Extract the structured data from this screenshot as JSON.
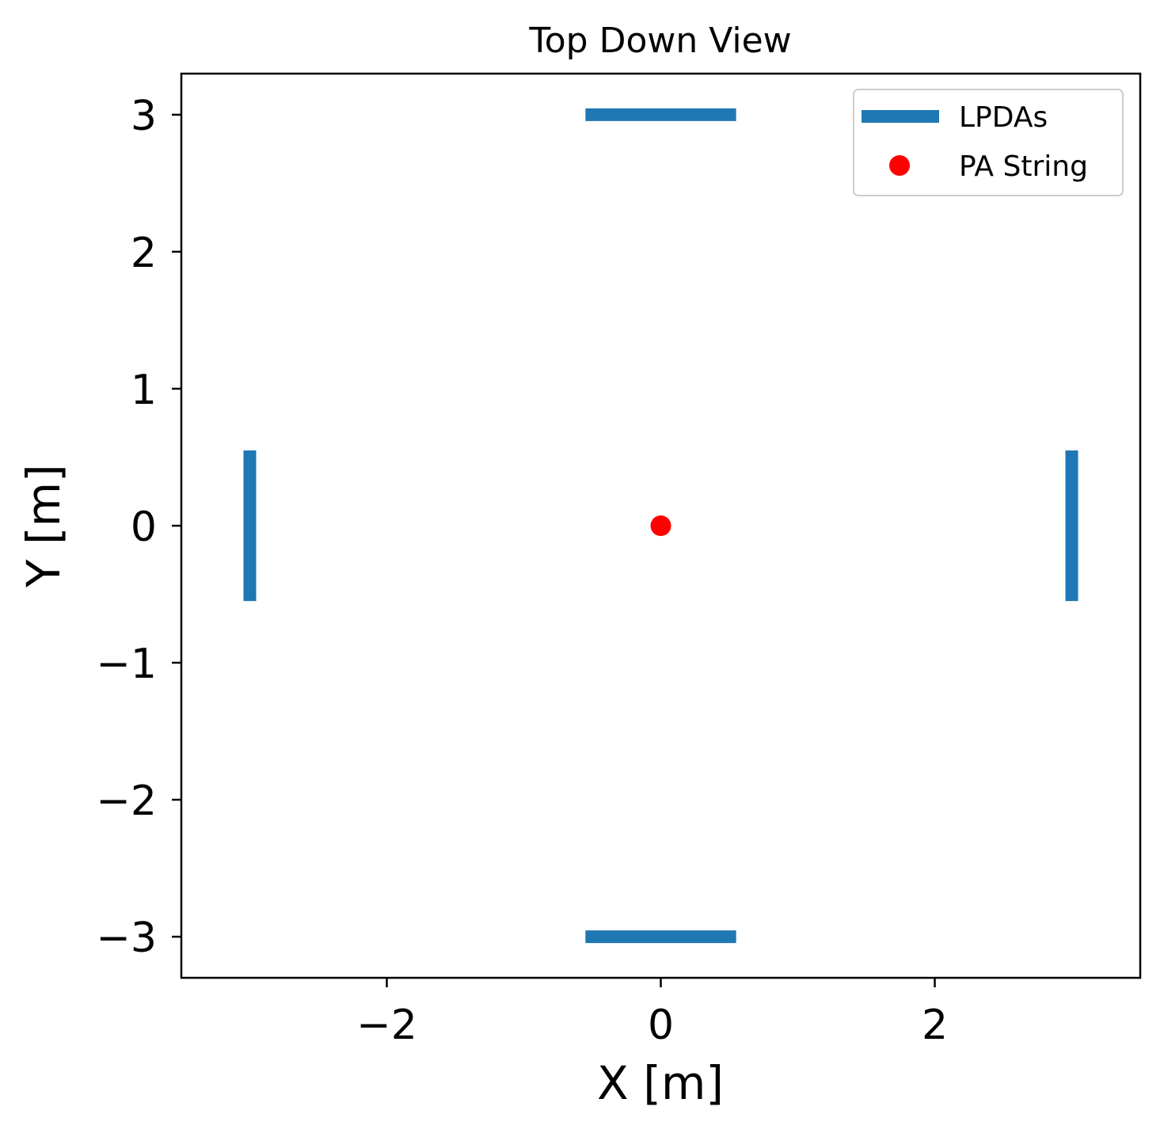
{
  "chart_data": {
    "type": "line",
    "title": "Top Down View",
    "xlabel": "X [m]",
    "ylabel": "Y [m]",
    "xlim": [
      -3.5,
      3.5
    ],
    "ylim": [
      -3.3,
      3.3
    ],
    "x_ticks": [
      {
        "value": -2,
        "label": "−2"
      },
      {
        "value": 0,
        "label": "0"
      },
      {
        "value": 2,
        "label": "2"
      }
    ],
    "y_ticks": [
      {
        "value": -3,
        "label": "−3"
      },
      {
        "value": -2,
        "label": "−2"
      },
      {
        "value": -1,
        "label": "−1"
      },
      {
        "value": 0,
        "label": "0"
      },
      {
        "value": 1,
        "label": "1"
      },
      {
        "value": 2,
        "label": "2"
      },
      {
        "value": 3,
        "label": "3"
      }
    ],
    "grid": false,
    "legend_position": "top-right",
    "series": [
      {
        "name": "LPDAs",
        "kind": "segments",
        "color": "#1f77b4",
        "segments": [
          {
            "x": [
              -0.55,
              0.55
            ],
            "y": [
              3,
              3
            ]
          },
          {
            "x": [
              -0.55,
              0.55
            ],
            "y": [
              -3,
              -3
            ]
          },
          {
            "x": [
              -3,
              -3
            ],
            "y": [
              -0.55,
              0.55
            ]
          },
          {
            "x": [
              3,
              3
            ],
            "y": [
              -0.55,
              0.55
            ]
          }
        ]
      },
      {
        "name": "PA String",
        "kind": "points",
        "color": "#ff0000",
        "points": [
          {
            "x": 0,
            "y": 0
          }
        ]
      }
    ]
  }
}
